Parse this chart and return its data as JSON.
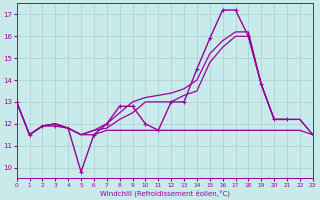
{
  "xlabel": "Windchill (Refroidissement éolien,°C)",
  "bg_color": "#c8eaea",
  "grid_color": "#a8d0d0",
  "line_color": "#990099",
  "xlim": [
    0,
    23
  ],
  "ylim": [
    9.5,
    17.5
  ],
  "xticks": [
    0,
    1,
    2,
    3,
    4,
    5,
    6,
    7,
    8,
    9,
    10,
    11,
    12,
    13,
    14,
    15,
    16,
    17,
    18,
    19,
    20,
    21,
    22,
    23
  ],
  "yticks": [
    10,
    11,
    12,
    13,
    14,
    15,
    16,
    17
  ],
  "s1_x": [
    0,
    1,
    2,
    3,
    4,
    5,
    6,
    7,
    8,
    9,
    10,
    11,
    12,
    13,
    14,
    15,
    16,
    17,
    18,
    19,
    20,
    21
  ],
  "s1_y": [
    13.0,
    11.5,
    11.9,
    11.9,
    11.8,
    9.8,
    11.5,
    12.0,
    12.8,
    12.8,
    12.0,
    11.7,
    13.0,
    13.0,
    14.5,
    15.9,
    17.2,
    17.2,
    16.0,
    13.8,
    12.2,
    12.2
  ],
  "s2_x": [
    1,
    2,
    3,
    4,
    5,
    6,
    7,
    8,
    9,
    10,
    11,
    12,
    13,
    14,
    15,
    16,
    17,
    18,
    19,
    20,
    21,
    22,
    23
  ],
  "s2_y": [
    11.5,
    11.9,
    12.0,
    11.8,
    11.5,
    11.5,
    11.7,
    11.7,
    11.7,
    11.7,
    11.7,
    11.7,
    11.7,
    11.7,
    11.7,
    11.7,
    11.7,
    11.7,
    11.7,
    11.7,
    11.7,
    11.7,
    11.5
  ],
  "s3_x": [
    0,
    1,
    2,
    3,
    4,
    5,
    6,
    7,
    8,
    9,
    10,
    11,
    12,
    13,
    14,
    15,
    16,
    17,
    18,
    19,
    20,
    21,
    22,
    23
  ],
  "s3_y": [
    13.0,
    11.5,
    11.9,
    12.0,
    11.8,
    11.5,
    11.7,
    12.0,
    12.5,
    13.0,
    13.2,
    13.3,
    13.4,
    13.6,
    14.0,
    15.2,
    15.8,
    16.2,
    16.2,
    13.8,
    12.2,
    12.2,
    12.2,
    11.5
  ],
  "s4_x": [
    0,
    1,
    2,
    3,
    4,
    5,
    6,
    7,
    8,
    9,
    10,
    11,
    12,
    13,
    14,
    15,
    16,
    17,
    18,
    19,
    20,
    21,
    22,
    23
  ],
  "s4_y": [
    13.0,
    11.5,
    11.9,
    12.0,
    11.8,
    11.5,
    11.7,
    11.8,
    12.2,
    12.5,
    13.0,
    13.0,
    13.0,
    13.3,
    13.5,
    14.8,
    15.5,
    16.0,
    16.0,
    13.8,
    12.2,
    12.2,
    12.2,
    11.5
  ]
}
